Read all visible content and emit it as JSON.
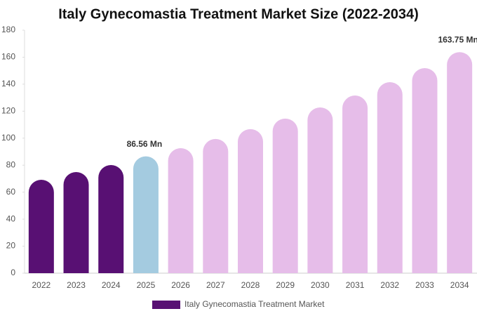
{
  "chart_data": {
    "type": "bar",
    "title": "Italy Gynecomastia Treatment Market Size (2022-2034)",
    "categories": [
      "2022",
      "2023",
      "2024",
      "2025",
      "2026",
      "2027",
      "2028",
      "2029",
      "2030",
      "2031",
      "2032",
      "2033",
      "2034"
    ],
    "series": [
      {
        "name": "Italy Gynecomastia Treatment Market",
        "color": "#581073",
        "values": [
          69.2,
          74.9,
          80.1,
          86.56,
          92.6,
          99.4,
          106.7,
          114.5,
          122.8,
          131.6,
          141.5,
          151.9,
          163.75
        ],
        "value_labels": [
          null,
          null,
          null,
          "86.56 Mn",
          null,
          null,
          null,
          null,
          null,
          null,
          null,
          null,
          "163.75 Mn"
        ],
        "bar_colors": [
          "#581073",
          "#581073",
          "#581073",
          "#a4cbe0",
          "#e6bde9",
          "#e6bde9",
          "#e6bde9",
          "#e6bde9",
          "#e6bde9",
          "#e6bde9",
          "#e6bde9",
          "#e6bde9",
          "#e6bde9"
        ]
      }
    ],
    "ylim": [
      0,
      180
    ],
    "yticks": [
      0,
      20,
      40,
      60,
      80,
      100,
      120,
      140,
      160,
      180
    ],
    "grid": false
  }
}
